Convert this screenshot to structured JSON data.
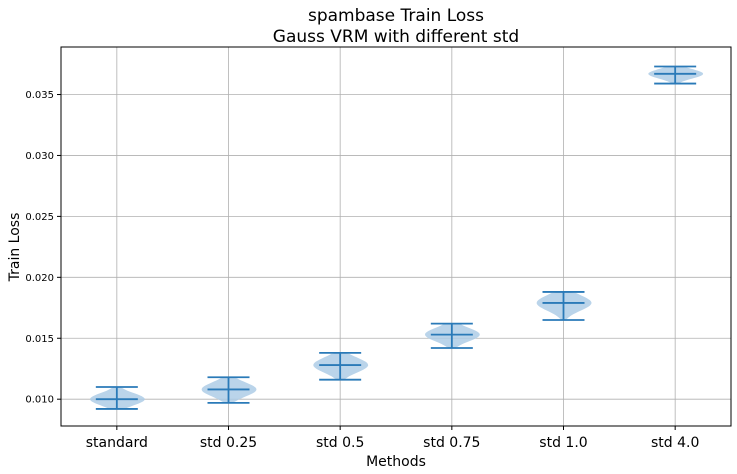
{
  "chart_data": {
    "type": "violin",
    "title_lines": [
      "spambase Train Loss",
      "Gauss VRM with different std"
    ],
    "xlabel": "Methods",
    "ylabel": "Train Loss",
    "categories": [
      "standard",
      "std 0.25",
      "std 0.5",
      "std 0.75",
      "std 1.0",
      "std 4.0"
    ],
    "ylim": [
      0.0078,
      0.0389
    ],
    "yticks": [
      0.01,
      0.015,
      0.02,
      0.025,
      0.03,
      0.035
    ],
    "ytick_labels": [
      "0.010",
      "0.015",
      "0.020",
      "0.025",
      "0.030",
      "0.035"
    ],
    "grid": true,
    "series": [
      {
        "category": "standard",
        "min": 0.0092,
        "mean": 0.01,
        "max": 0.011
      },
      {
        "category": "std 0.25",
        "min": 0.0097,
        "mean": 0.0108,
        "max": 0.0118
      },
      {
        "category": "std 0.5",
        "min": 0.0116,
        "mean": 0.0128,
        "max": 0.0138
      },
      {
        "category": "std 0.75",
        "min": 0.0142,
        "mean": 0.0153,
        "max": 0.0162
      },
      {
        "category": "std 1.0",
        "min": 0.0165,
        "mean": 0.0179,
        "max": 0.0188
      },
      {
        "category": "std 4.0",
        "min": 0.0359,
        "mean": 0.0367,
        "max": 0.0373
      }
    ],
    "colors": {
      "body": "#aecde6",
      "stat": "#2a7ab8",
      "grid": "#b0b0b0"
    }
  }
}
